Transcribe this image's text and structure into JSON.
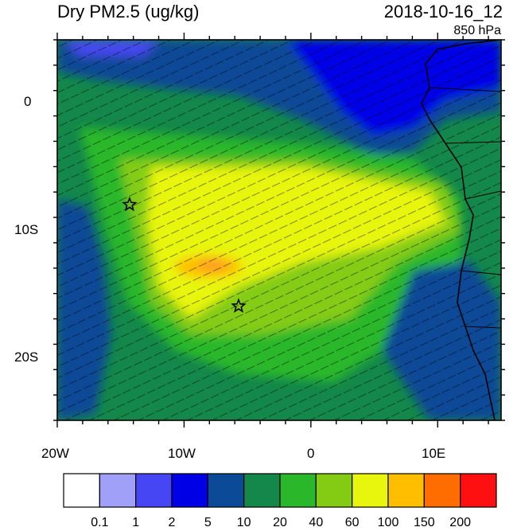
{
  "header": {
    "variable_title": "Dry PM2.5 (ug/kg)",
    "datetime": "2018-10-16_12",
    "level": "850 hPa"
  },
  "axes": {
    "lon_labels": [
      "20W",
      "10W",
      "0",
      "10E"
    ],
    "lat_labels": [
      "0",
      "10S",
      "20S"
    ],
    "lon_range": [
      -20,
      15
    ],
    "lat_range": [
      -25,
      5
    ]
  },
  "colorbar": {
    "labels": [
      "0.1",
      "1",
      "2",
      "5",
      "10",
      "20",
      "40",
      "60",
      "100",
      "150",
      "200"
    ],
    "colors": [
      "#ffffff",
      "#a0a0f8",
      "#4646f4",
      "#0000e6",
      "#0a4a96",
      "#13884a",
      "#2ab82a",
      "#84cc14",
      "#e8f50c",
      "#ffbe00",
      "#ff6c00",
      "#ff1010"
    ]
  },
  "markers": [
    {
      "name": "station-star",
      "lon": -14.3,
      "lat": -8.0
    },
    {
      "name": "station-star",
      "lon": -5.7,
      "lat": -16.0
    }
  ]
}
